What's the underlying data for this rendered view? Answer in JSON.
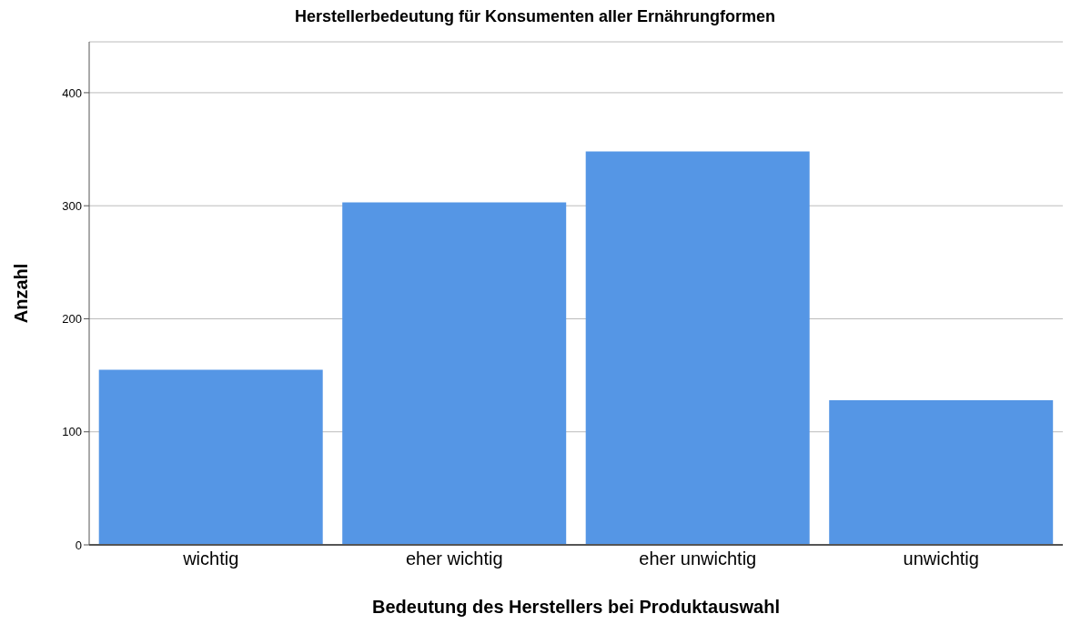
{
  "chart_data": {
    "type": "bar",
    "title": "Herstellerbedeutung für Konsumenten aller Ernährungformen",
    "xlabel": "Bedeutung des Herstellers bei Produktauswahl",
    "ylabel": "Anzahl",
    "categories": [
      "wichtig",
      "eher wichtig",
      "eher unwichtig",
      "unwichtig"
    ],
    "values": [
      155,
      303,
      348,
      128
    ],
    "color": "#5596e5",
    "ylim": [
      0,
      445
    ],
    "yticks": [
      0,
      100,
      200,
      300,
      400
    ],
    "grid": "y"
  }
}
